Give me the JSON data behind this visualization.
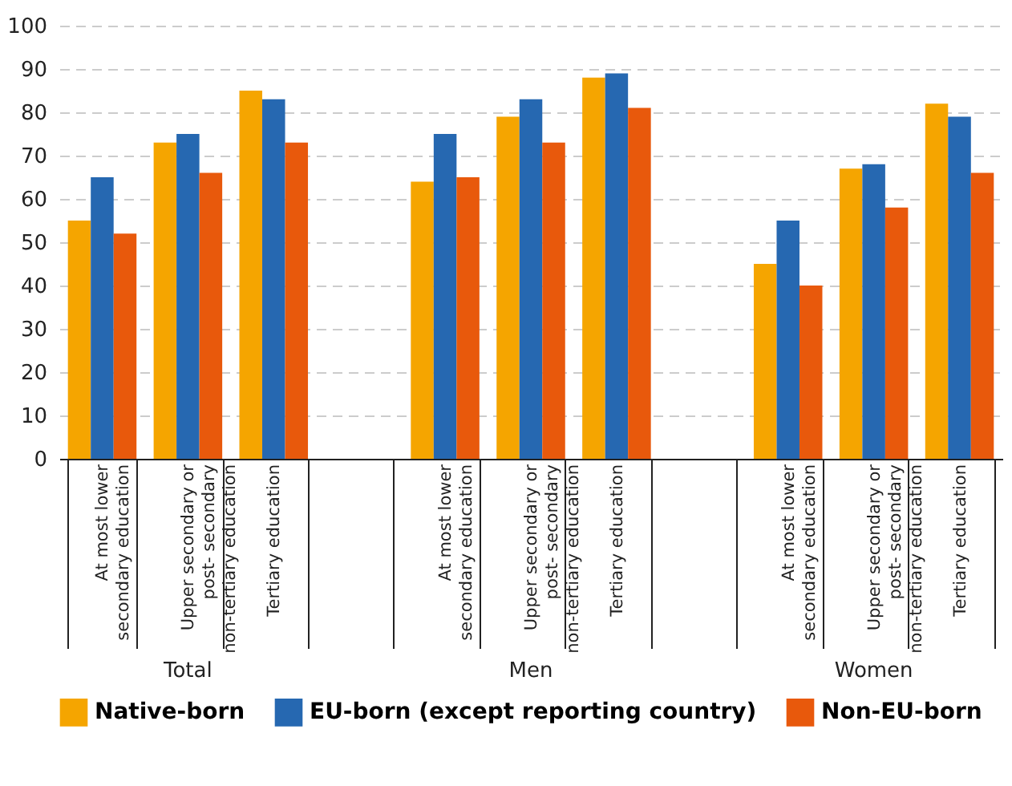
{
  "chart_data": {
    "type": "bar",
    "categories": [
      "At most lower\nsecondary education",
      "Upper secondary or\npost- secondary\nnon-tertiary education",
      "Tertiary education",
      null,
      "At most lower\nsecondary education",
      "Upper secondary or\npost- secondary\nnon-tertiary education",
      "Tertiary education",
      null,
      "At most lower\nsecondary education",
      "Upper secondary or\npost- secondary\nnon-tertiary education",
      "Tertiary education"
    ],
    "series": [
      {
        "name": "Native-born",
        "color": "#f5a500",
        "values": [
          55,
          73,
          85,
          null,
          64,
          79,
          88,
          null,
          45,
          67,
          82
        ]
      },
      {
        "name": "EU-born (except reporting country)",
        "color": "#2668b1",
        "values": [
          65,
          75,
          83,
          null,
          75,
          83,
          89,
          null,
          55,
          68,
          79
        ]
      },
      {
        "name": "Non-EU-born",
        "color": "#e8590c",
        "values": [
          52,
          66,
          73,
          null,
          65,
          73,
          81,
          null,
          40,
          58,
          66
        ]
      }
    ],
    "annotations": [
      "Total",
      "Men",
      "Women"
    ],
    "ylim": [
      0,
      100
    ],
    "yticks": [
      0,
      10,
      20,
      30,
      40,
      50,
      60,
      70,
      80,
      90,
      100
    ],
    "grid": "y",
    "legend": "bottom"
  }
}
